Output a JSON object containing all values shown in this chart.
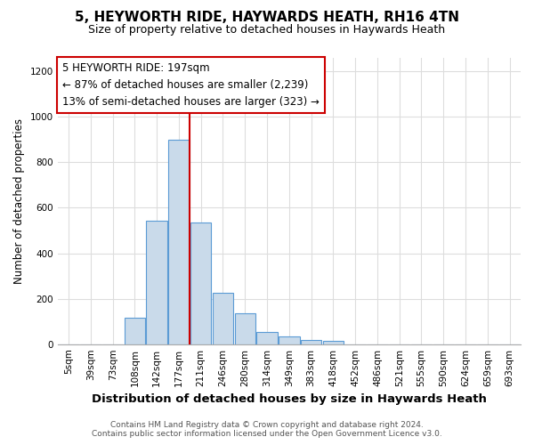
{
  "title1": "5, HEYWORTH RIDE, HAYWARDS HEATH, RH16 4TN",
  "title2": "Size of property relative to detached houses in Haywards Heath",
  "xlabel": "Distribution of detached houses by size in Haywards Heath",
  "ylabel": "Number of detached properties",
  "bins": [
    "5sqm",
    "39sqm",
    "73sqm",
    "108sqm",
    "142sqm",
    "177sqm",
    "211sqm",
    "246sqm",
    "280sqm",
    "314sqm",
    "349sqm",
    "383sqm",
    "418sqm",
    "452sqm",
    "486sqm",
    "521sqm",
    "555sqm",
    "590sqm",
    "624sqm",
    "659sqm",
    "693sqm"
  ],
  "values": [
    0,
    0,
    0,
    115,
    545,
    900,
    535,
    225,
    135,
    55,
    35,
    18,
    15,
    0,
    0,
    0,
    0,
    0,
    0,
    0,
    0
  ],
  "bar_color": "#c9daea",
  "bar_edgecolor": "#5b9bd5",
  "annotation_text": "5 HEYWORTH RIDE: 197sqm\n← 87% of detached houses are smaller (2,239)\n13% of semi-detached houses are larger (323) →",
  "annotation_box_edgecolor": "#cc0000",
  "redline_bin_index": 5,
  "redline_color": "#cc0000",
  "ylim": [
    0,
    1260
  ],
  "yticks": [
    0,
    200,
    400,
    600,
    800,
    1000,
    1200
  ],
  "footer": "Contains HM Land Registry data © Crown copyright and database right 2024.\nContains public sector information licensed under the Open Government Licence v3.0.",
  "background_color": "#ffffff",
  "plot_bg_color": "#ffffff",
  "title1_fontsize": 11,
  "title2_fontsize": 9,
  "xlabel_fontsize": 9.5,
  "ylabel_fontsize": 8.5,
  "annotation_fontsize": 8.5,
  "footer_fontsize": 6.5,
  "tick_fontsize": 7.5
}
